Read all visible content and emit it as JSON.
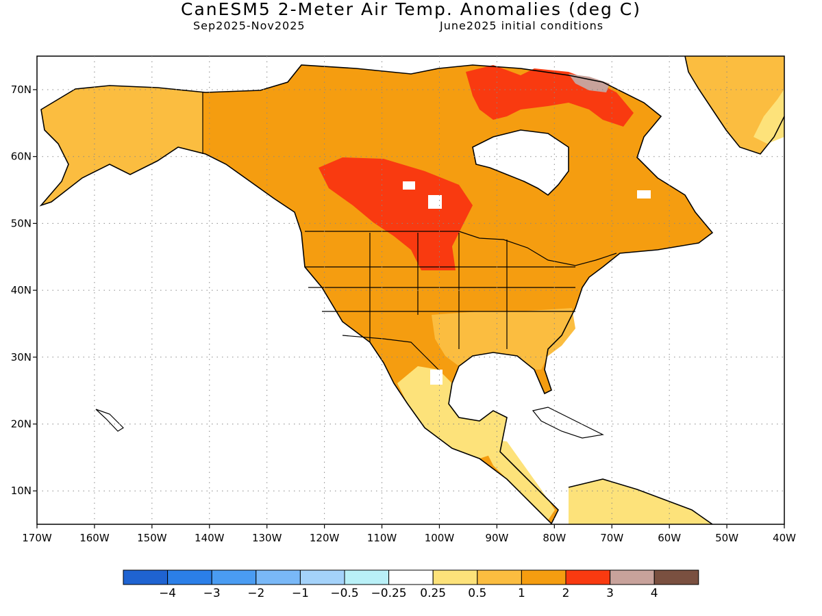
{
  "title": "CanESM5 2-Meter Air Temp. Anomalies (deg C)",
  "subtitle_left": "Sep2025-Nov2025",
  "subtitle_right": "June2025 initial conditions",
  "lon_ticks": [
    "170W",
    "160W",
    "150W",
    "140W",
    "130W",
    "120W",
    "110W",
    "100W",
    "90W",
    "80W",
    "70W",
    "60W",
    "50W",
    "40W"
  ],
  "lat_ticks": [
    "70N",
    "60N",
    "50N",
    "40N",
    "30N",
    "20N",
    "10N"
  ],
  "colorbar": {
    "colors": [
      "#1f63d1",
      "#2b7fe8",
      "#4a9cf2",
      "#79b8f7",
      "#a4d2fa",
      "#b9f0f7",
      "#ffffff",
      "#fde27a",
      "#fbbd40",
      "#f59d10",
      "#f93a10",
      "#c8a29b",
      "#7a5040"
    ],
    "labels": [
      "-4",
      "-3",
      "-2",
      "-1",
      "-0.5",
      "-0.25",
      "0.25",
      "0.5",
      "1",
      "2",
      "3",
      "4"
    ]
  },
  "map": {
    "land_default_color": "#f59d10",
    "regions": [
      {
        "name": "alaska-anomaly",
        "color": "#fbbd40"
      },
      {
        "name": "north-canada-anomaly",
        "color": "#f59d10"
      },
      {
        "name": "prairies-anomaly",
        "color": "#f93a10"
      },
      {
        "name": "arctic-islands-anomaly",
        "color": "#f93a10"
      },
      {
        "name": "ellesmere-anomaly",
        "color": "#c8a29b"
      },
      {
        "name": "greenland-anomaly",
        "color": "#fbbd40"
      },
      {
        "name": "southeast-us-anomaly",
        "color": "#fbbd40"
      },
      {
        "name": "mexico-anomaly",
        "color": "#fde27a"
      },
      {
        "name": "central-america-anomaly",
        "color": "#fde27a"
      },
      {
        "name": "south-america-anomaly",
        "color": "#fde27a"
      }
    ]
  }
}
